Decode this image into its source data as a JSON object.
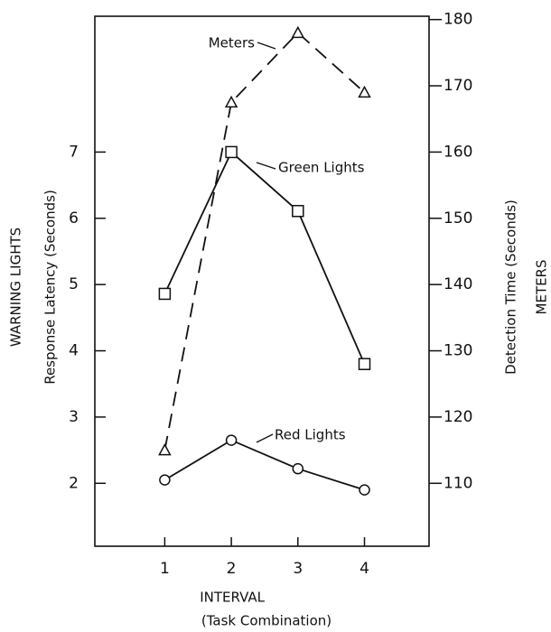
{
  "chart_data": {
    "type": "line",
    "xlabel": "INTERVAL",
    "xlabel2": "(Task Combination)",
    "ylabel": "WARNING LIGHTS",
    "ylabel2": "Response Latency (Seconds)",
    "y2label": "Detection Time (Seconds)",
    "y2label2": "METERS",
    "x": [
      1,
      2,
      3,
      4
    ],
    "xlim": [
      -0.05,
      4.97
    ],
    "xticks": [
      1,
      2,
      3,
      4
    ],
    "ylim": [
      1.05,
      9.05
    ],
    "yticks": [
      2,
      3,
      4,
      5,
      6,
      7
    ],
    "y2lim": [
      100.5,
      180.5
    ],
    "y2ticks": [
      110,
      120,
      130,
      140,
      150,
      160,
      170,
      180
    ],
    "grid": false,
    "series": [
      {
        "name": "Meters",
        "color": "#111111",
        "axis": "y2",
        "marker": "triangle",
        "dashed": true,
        "values": [
          115,
          167.5,
          178,
          169
        ]
      },
      {
        "name": "Green Lights",
        "color": "#111111",
        "marker": "square",
        "dashed": false,
        "values": [
          4.86,
          7.0,
          6.11,
          3.8
        ]
      },
      {
        "name": "Red Lights",
        "color": "#111111",
        "marker": "circle",
        "dashed": false,
        "values": [
          2.05,
          2.65,
          2.22,
          1.9
        ]
      }
    ]
  }
}
